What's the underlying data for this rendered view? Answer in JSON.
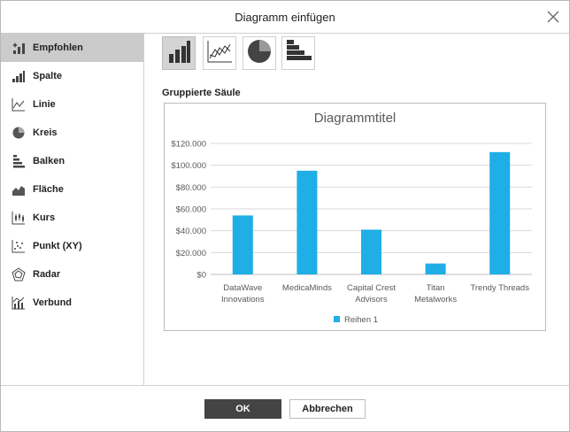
{
  "dialog": {
    "title": "Diagramm einfügen"
  },
  "sidebar": {
    "items": [
      {
        "label": "Empfohlen",
        "icon": "sparkle-icon"
      },
      {
        "label": "Spalte",
        "icon": "column-chart-icon"
      },
      {
        "label": "Linie",
        "icon": "line-chart-icon"
      },
      {
        "label": "Kreis",
        "icon": "pie-chart-icon"
      },
      {
        "label": "Balken",
        "icon": "bar-chart-icon"
      },
      {
        "label": "Fläche",
        "icon": "area-chart-icon"
      },
      {
        "label": "Kurs",
        "icon": "stock-chart-icon"
      },
      {
        "label": "Punkt (XY)",
        "icon": "scatter-chart-icon"
      },
      {
        "label": "Radar",
        "icon": "radar-chart-icon"
      },
      {
        "label": "Verbund",
        "icon": "combo-chart-icon"
      }
    ],
    "active_index": 0
  },
  "chart_types": [
    "clustered-column-icon",
    "line-icon",
    "pie-icon",
    "bar-icon"
  ],
  "selected_type_label": "Gruppierte Säule",
  "chart_data": {
    "type": "bar",
    "title": "Diagrammtitel",
    "categories": [
      [
        "DataWave",
        "Innovations"
      ],
      [
        "MedicaMinds"
      ],
      [
        "Capital Crest",
        "Advisors"
      ],
      [
        "Titan",
        "Metalworks"
      ],
      [
        "Trendy Threads"
      ]
    ],
    "series": [
      {
        "name": "Reihen 1",
        "values": [
          54000,
          95000,
          41000,
          10000,
          112000
        ],
        "color": "#1faee5"
      }
    ],
    "ylim": [
      0,
      120000
    ],
    "yticks": [
      "$0",
      "$20.000",
      "$40.000",
      "$60.000",
      "$80.000",
      "$100.000",
      "$120.000"
    ],
    "grid": true,
    "legend": "bottom"
  },
  "buttons": {
    "ok": "OK",
    "cancel": "Abbrechen"
  }
}
